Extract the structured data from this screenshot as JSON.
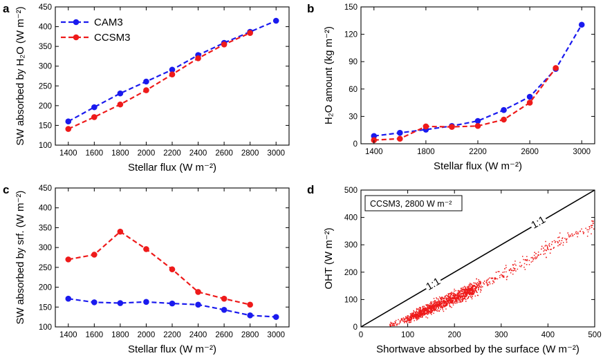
{
  "chart_data": [
    {
      "panel": "a",
      "type": "line",
      "title": "",
      "xlabel": "Stellar flux (W m⁻²)",
      "ylabel": "SW absorbed by H₂O (W m⁻²)",
      "xlim": [
        1300,
        3100
      ],
      "ylim": [
        100,
        450
      ],
      "xticks": [
        1400,
        1600,
        1800,
        2000,
        2200,
        2400,
        2600,
        2800,
        3000
      ],
      "yticks": [
        100,
        150,
        200,
        250,
        300,
        350,
        400,
        450
      ],
      "legend": {
        "position": "top-left",
        "entries": [
          "CAM3",
          "CCSM3"
        ]
      },
      "series": [
        {
          "name": "CAM3",
          "color": "#1a1aee",
          "x": [
            1400,
            1600,
            1800,
            2000,
            2200,
            2400,
            2600,
            2800,
            3000
          ],
          "y": [
            160,
            196,
            231,
            261,
            291,
            328,
            359,
            387,
            415
          ]
        },
        {
          "name": "CCSM3",
          "color": "#ee1a1a",
          "x": [
            1400,
            1600,
            1800,
            2000,
            2200,
            2400,
            2600,
            2800
          ],
          "y": [
            141,
            171,
            203,
            239,
            279,
            320,
            355,
            384
          ]
        }
      ]
    },
    {
      "panel": "b",
      "type": "line",
      "title": "",
      "xlabel": "Stellar flux (W m⁻²)",
      "ylabel": "H₂O amount (kg m⁻²)",
      "xlim": [
        1300,
        3100
      ],
      "ylim": [
        0,
        150
      ],
      "xticks": [
        1400,
        1800,
        2200,
        2600,
        3000
      ],
      "yticks": [
        0,
        30,
        60,
        90,
        120,
        150
      ],
      "series": [
        {
          "name": "CAM3",
          "color": "#1a1aee",
          "x": [
            1400,
            1600,
            1800,
            2000,
            2200,
            2400,
            2600,
            2800,
            3000
          ],
          "y": [
            8.5,
            12,
            15.5,
            19.5,
            25,
            37,
            51.5,
            82,
            130.5
          ]
        },
        {
          "name": "CCSM3",
          "color": "#ee1a1a",
          "x": [
            1400,
            1600,
            1800,
            2000,
            2200,
            2400,
            2600,
            2800
          ],
          "y": [
            4,
            5.5,
            19,
            18.5,
            19.5,
            26.5,
            45,
            83
          ]
        }
      ]
    },
    {
      "panel": "c",
      "type": "line",
      "title": "",
      "xlabel": "Stellar flux (W m⁻²)",
      "ylabel": "SW absorbed by srf. (W m⁻²)",
      "xlim": [
        1300,
        3100
      ],
      "ylim": [
        100,
        450
      ],
      "xticks": [
        1400,
        1600,
        1800,
        2000,
        2200,
        2400,
        2600,
        2800,
        3000
      ],
      "yticks": [
        100,
        150,
        200,
        250,
        300,
        350,
        400,
        450
      ],
      "series": [
        {
          "name": "CAM3",
          "color": "#1a1aee",
          "x": [
            1400,
            1600,
            1800,
            2000,
            2200,
            2400,
            2600,
            2800,
            3000
          ],
          "y": [
            171,
            162,
            160,
            163,
            159,
            156,
            143,
            129,
            125
          ]
        },
        {
          "name": "CCSM3",
          "color": "#ee1a1a",
          "x": [
            1400,
            1600,
            1800,
            2000,
            2200,
            2400,
            2600,
            2800
          ],
          "y": [
            270,
            282,
            340,
            296,
            245,
            188,
            171,
            156
          ]
        }
      ]
    },
    {
      "panel": "d",
      "type": "scatter",
      "title": "",
      "xlabel": "Shortwave absorbed by the surface (W m⁻²)",
      "ylabel": "OHT (W m⁻²)",
      "xlim": [
        0,
        500
      ],
      "ylim": [
        0,
        500
      ],
      "xticks": [
        0,
        100,
        200,
        300,
        400,
        500
      ],
      "yticks": [
        0,
        100,
        200,
        300,
        400,
        500
      ],
      "inset_label": "CCSM3, 2800 W m⁻²",
      "reference_line": {
        "label": "1:1",
        "label_repeat": 2,
        "x": [
          0,
          500
        ],
        "y": [
          0,
          500
        ]
      },
      "cloud": {
        "description": "scatter of many grid-point values along a trend",
        "color": "#ee1a1a",
        "n_points": 1800,
        "x_range": [
          60,
          500
        ],
        "trend_x": [
          65,
          100,
          150,
          200,
          250,
          300,
          350,
          400,
          450,
          500
        ],
        "trend_y": [
          8,
          28,
          70,
          105,
          145,
          190,
          235,
          290,
          335,
          375
        ],
        "spread": 28
      }
    }
  ],
  "panel_letters": [
    "a",
    "b",
    "c",
    "d"
  ]
}
